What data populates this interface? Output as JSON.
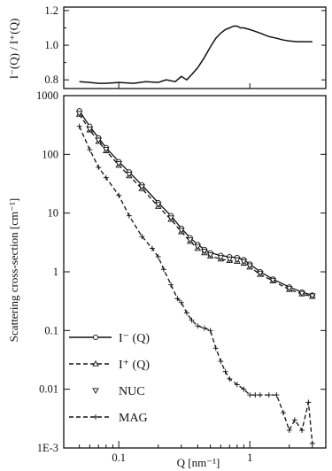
{
  "chart_data": [
    {
      "type": "line",
      "panel": "ratio",
      "ylabel": "I⁻(Q) / I⁺(Q)",
      "yscale": "linear",
      "ylim": [
        0.75,
        1.22
      ],
      "xscale": "log",
      "xlim": [
        0.038,
        3.8
      ],
      "y_ticks": [
        "0.8",
        "1.0",
        "1.2"
      ],
      "series": [
        {
          "x": [
            0.05,
            0.06,
            0.07,
            0.08,
            0.1,
            0.13,
            0.16,
            0.2,
            0.23,
            0.27,
            0.3,
            0.33,
            0.36,
            0.4,
            0.45,
            0.5,
            0.55,
            0.6,
            0.65,
            0.7,
            0.75,
            0.8,
            0.85,
            0.9,
            1.0,
            1.1,
            1.2,
            1.4,
            1.6,
            1.8,
            2.0,
            2.3,
            2.6,
            3.0
          ],
          "y": [
            0.79,
            0.785,
            0.78,
            0.78,
            0.785,
            0.78,
            0.79,
            0.785,
            0.8,
            0.79,
            0.82,
            0.8,
            0.83,
            0.87,
            0.93,
            0.99,
            1.04,
            1.07,
            1.09,
            1.1,
            1.11,
            1.11,
            1.1,
            1.1,
            1.09,
            1.08,
            1.07,
            1.05,
            1.04,
            1.03,
            1.025,
            1.02,
            1.02,
            1.02
          ]
        }
      ]
    },
    {
      "type": "scatter",
      "panel": "main",
      "xlabel": "Q [nm⁻¹]",
      "ylabel": "Scattering cross-section [cm⁻¹]",
      "xscale": "log",
      "yscale": "log",
      "xlim": [
        0.038,
        3.8
      ],
      "ylim": [
        0.001,
        1000
      ],
      "x_ticks": [
        "0.1",
        "1"
      ],
      "y_ticks": [
        "1E-3",
        "0.01",
        "0.1",
        "1",
        "10",
        "100",
        "1000"
      ],
      "legend_position": "bottom-left",
      "series": [
        {
          "name": "I⁻ (Q)",
          "marker": "circle",
          "line": "solid",
          "x": [
            0.05,
            0.06,
            0.07,
            0.08,
            0.1,
            0.12,
            0.15,
            0.2,
            0.25,
            0.3,
            0.35,
            0.4,
            0.45,
            0.5,
            0.6,
            0.7,
            0.8,
            0.9,
            1.0,
            1.2,
            1.5,
            2.0,
            2.5,
            3.0
          ],
          "y": [
            550,
            300,
            190,
            130,
            75,
            50,
            30,
            15,
            9,
            5.5,
            3.8,
            2.9,
            2.4,
            2.1,
            1.9,
            1.8,
            1.75,
            1.6,
            1.35,
            1.0,
            0.75,
            0.55,
            0.45,
            0.4
          ]
        },
        {
          "name": "I⁺ (Q)",
          "marker": "triangle",
          "line": "dashed",
          "x": [
            0.05,
            0.06,
            0.07,
            0.08,
            0.1,
            0.12,
            0.15,
            0.2,
            0.25,
            0.3,
            0.35,
            0.4,
            0.45,
            0.5,
            0.6,
            0.7,
            0.8,
            0.9,
            1.0,
            1.2,
            1.5,
            2.0,
            2.5,
            3.0
          ],
          "y": [
            480,
            260,
            165,
            115,
            65,
            43,
            26,
            13,
            7.8,
            4.8,
            3.3,
            2.5,
            2.1,
            1.85,
            1.65,
            1.55,
            1.5,
            1.4,
            1.2,
            0.9,
            0.7,
            0.5,
            0.42,
            0.38
          ]
        },
        {
          "name": "NUC",
          "marker": "inverted-triangle",
          "line": "none",
          "x": [
            0.05,
            0.06,
            0.07,
            0.08,
            0.1,
            0.12,
            0.15,
            0.2,
            0.25,
            0.3,
            0.35,
            0.4,
            0.45,
            0.5,
            0.6,
            0.7,
            0.8,
            0.9,
            1.0,
            1.2,
            1.5,
            2.0,
            2.5,
            3.0
          ],
          "y": [
            500,
            270,
            175,
            122,
            70,
            46,
            28,
            14,
            8.3,
            5.1,
            3.5,
            2.7,
            2.25,
            1.95,
            1.75,
            1.65,
            1.6,
            1.5,
            1.27,
            0.95,
            0.72,
            0.52,
            0.43,
            0.39
          ]
        },
        {
          "name": "MAG",
          "marker": "plus",
          "line": "dashed",
          "x": [
            0.05,
            0.06,
            0.07,
            0.08,
            0.1,
            0.12,
            0.15,
            0.18,
            0.2,
            0.22,
            0.25,
            0.28,
            0.3,
            0.33,
            0.36,
            0.4,
            0.45,
            0.5,
            0.55,
            0.6,
            0.65,
            0.7,
            0.8,
            0.9,
            1.0,
            1.1,
            1.2,
            1.4,
            1.6,
            1.8,
            2.0,
            2.2,
            2.5,
            2.8,
            3.0
          ],
          "y": [
            300,
            120,
            60,
            40,
            20,
            9,
            4,
            2.5,
            1.8,
            1.1,
            0.6,
            0.35,
            0.3,
            0.2,
            0.15,
            0.12,
            0.11,
            0.1,
            0.05,
            0.03,
            0.02,
            0.015,
            0.012,
            0.01,
            0.008,
            0.008,
            0.008,
            0.008,
            0.008,
            0.004,
            0.002,
            0.003,
            0.002,
            0.006,
            0.0012
          ]
        }
      ]
    }
  ]
}
